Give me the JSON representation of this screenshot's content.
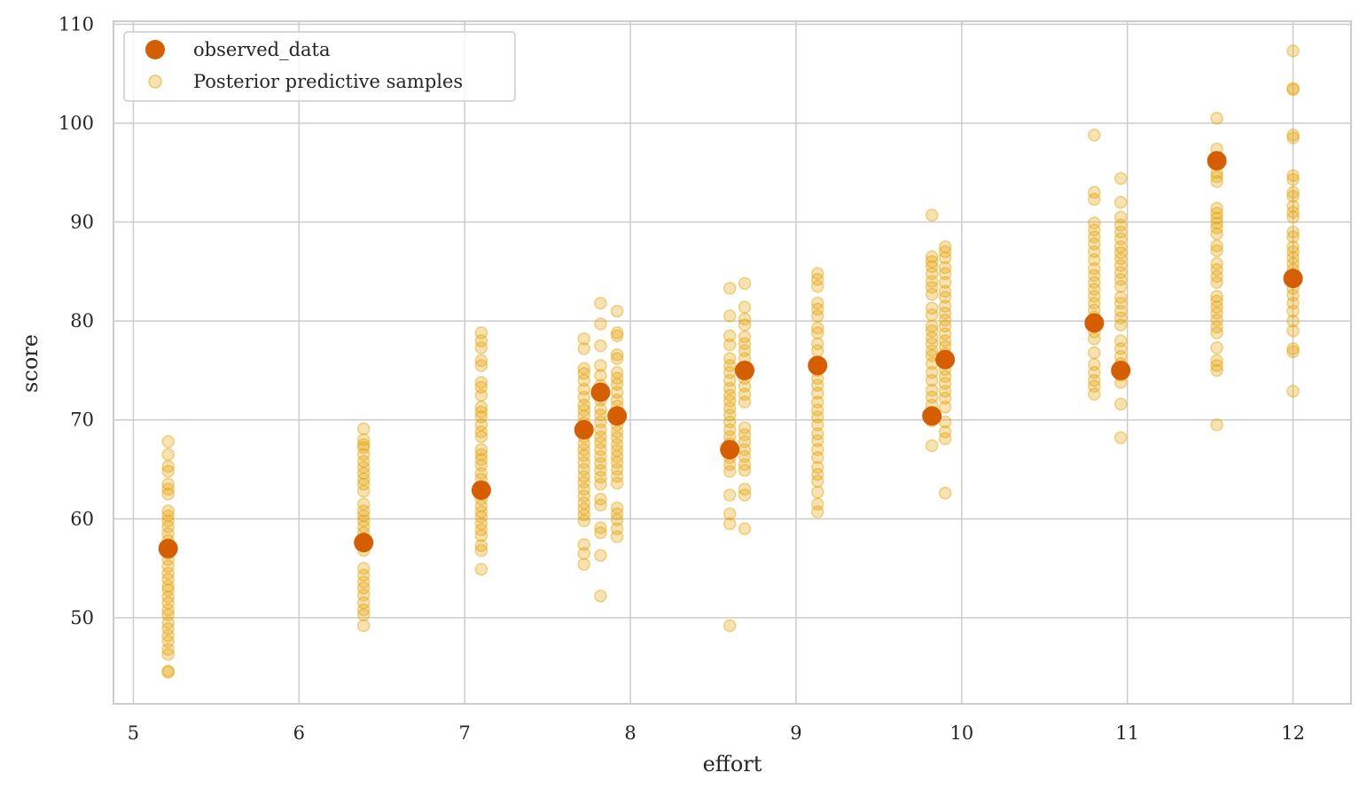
{
  "chart_data": {
    "type": "scatter",
    "title": "",
    "xlabel": "effort",
    "ylabel": "score",
    "xlim": [
      4.88,
      12.35
    ],
    "ylim": [
      41.3,
      110.3
    ],
    "xticks": [
      5,
      6,
      7,
      8,
      9,
      10,
      11,
      12
    ],
    "yticks": [
      50,
      60,
      70,
      80,
      90,
      100,
      110
    ],
    "grid": true,
    "legend_position": "top-left",
    "series": [
      {
        "name": "observed_data",
        "color": "#d55e00",
        "marker": "large-circle",
        "points": [
          [
            5.21,
            57.0
          ],
          [
            6.39,
            57.6
          ],
          [
            7.1,
            62.9
          ],
          [
            7.72,
            69.0
          ],
          [
            7.82,
            72.8
          ],
          [
            7.92,
            70.4
          ],
          [
            8.6,
            67.0
          ],
          [
            8.69,
            75.0
          ],
          [
            9.13,
            75.5
          ],
          [
            9.82,
            70.4
          ],
          [
            9.9,
            76.1
          ],
          [
            10.8,
            79.8
          ],
          [
            10.96,
            75.0
          ],
          [
            11.54,
            96.2
          ],
          [
            12.0,
            84.3
          ]
        ]
      },
      {
        "name": "Posterior predictive samples",
        "color": "#e69f00",
        "marker": "small-circle-translucent",
        "columns": [
          {
            "x": 5.21,
            "y": [
              67.8,
              66.5,
              65.3,
              64.8,
              63.5,
              63.0,
              62.5,
              60.8,
              60.3,
              59.8,
              59.2,
              58.5,
              57.8,
              57.0,
              56.5,
              55.9,
              55.2,
              54.5,
              53.9,
              53.2,
              52.8,
              52.1,
              51.5,
              50.8,
              50.3,
              49.5,
              48.9,
              48.2,
              47.6,
              46.8,
              46.3,
              44.6,
              44.5
            ]
          },
          {
            "x": 6.39,
            "y": [
              69.1,
              68.0,
              67.5,
              67.2,
              66.5,
              65.8,
              65.2,
              64.6,
              64.0,
              63.5,
              62.8,
              61.5,
              60.8,
              60.3,
              59.8,
              59.2,
              58.6,
              58.0,
              57.4,
              56.8,
              55.0,
              54.3,
              53.6,
              53.0,
              52.3,
              51.5,
              50.8,
              50.3,
              49.2
            ]
          },
          {
            "x": 7.1,
            "y": [
              78.8,
              78.0,
              77.3,
              76.0,
              75.5,
              73.8,
              73.3,
              72.5,
              71.3,
              70.8,
              70.3,
              69.5,
              68.8,
              68.3,
              67.0,
              66.5,
              66.0,
              65.4,
              64.6,
              64.0,
              63.2,
              62.0,
              61.3,
              60.7,
              60.2,
              59.5,
              58.9,
              58.3,
              57.3,
              56.8,
              54.9
            ]
          },
          {
            "x": 7.72,
            "y": [
              78.2,
              77.2,
              75.2,
              74.7,
              74.0,
              73.1,
              72.3,
              71.5,
              71.0,
              70.4,
              69.7,
              69.0,
              68.3,
              67.6,
              67.0,
              66.4,
              65.7,
              65.0,
              64.3,
              63.7,
              63.0,
              62.3,
              61.6,
              61.0,
              60.4,
              59.8,
              57.4,
              56.5,
              55.4
            ]
          },
          {
            "x": 7.82,
            "y": [
              81.8,
              79.7,
              77.5,
              75.5,
              74.5,
              73.5,
              72.0,
              71.1,
              70.5,
              69.8,
              69.0,
              68.3,
              67.7,
              67.0,
              66.3,
              65.6,
              64.9,
              64.2,
              63.5,
              62.0,
              61.4,
              59.1,
              58.6,
              56.3,
              52.2
            ]
          },
          {
            "x": 7.92,
            "y": [
              81.0,
              78.8,
              78.5,
              76.6,
              76.2,
              74.8,
              74.2,
              73.6,
              72.8,
              72.0,
              71.4,
              70.7,
              70.1,
              69.5,
              68.8,
              68.2,
              67.5,
              66.9,
              66.3,
              65.7,
              65.0,
              64.3,
              63.6,
              61.1,
              60.5,
              59.9,
              59.0,
              58.2
            ]
          },
          {
            "x": 8.6,
            "y": [
              83.3,
              80.5,
              78.5,
              77.6,
              76.2,
              75.5,
              74.8,
              74.0,
              73.2,
              72.5,
              71.9,
              71.2,
              70.5,
              69.8,
              69.0,
              68.3,
              67.6,
              66.9,
              66.2,
              65.5,
              64.8,
              62.4,
              60.5,
              59.5,
              49.2
            ]
          },
          {
            "x": 8.69,
            "y": [
              83.8,
              81.4,
              80.2,
              79.6,
              78.4,
              77.7,
              77.0,
              76.2,
              75.0,
              74.2,
              73.4,
              72.6,
              71.8,
              69.2,
              68.5,
              67.8,
              67.0,
              66.3,
              65.5,
              64.9,
              63.0,
              62.4,
              59.0
            ]
          },
          {
            "x": 9.13,
            "y": [
              84.8,
              84.2,
              83.5,
              81.8,
              81.2,
              80.5,
              79.3,
              78.8,
              77.7,
              77.0,
              75.8,
              75.0,
              74.2,
              73.5,
              72.7,
              71.8,
              71.0,
              70.3,
              69.5,
              68.6,
              67.9,
              67.0,
              66.2,
              65.2,
              64.5,
              63.8,
              62.7,
              61.5,
              60.7
            ]
          },
          {
            "x": 9.82,
            "y": [
              90.7,
              86.5,
              86.0,
              85.5,
              84.8,
              84.0,
              83.4,
              82.7,
              81.3,
              80.6,
              79.5,
              79.0,
              78.3,
              77.7,
              77.0,
              76.5,
              75.7,
              74.8,
              74.0,
              73.0,
              72.3,
              71.5,
              70.6,
              69.9,
              67.4
            ]
          },
          {
            "x": 9.9,
            "y": [
              87.5,
              87.0,
              86.4,
              85.4,
              84.8,
              83.9,
              83.0,
              82.4,
              81.5,
              80.8,
              80.1,
              79.5,
              78.7,
              78.0,
              77.4,
              76.7,
              75.8,
              75.1,
              74.4,
              73.7,
              72.9,
              72.2,
              71.3,
              69.8,
              68.8,
              68.1,
              62.6
            ]
          },
          {
            "x": 10.8,
            "y": [
              98.8,
              93.0,
              92.3,
              89.9,
              89.2,
              88.5,
              87.8,
              87.0,
              86.2,
              85.3,
              84.6,
              83.9,
              83.2,
              82.5,
              81.8,
              81.1,
              80.4,
              79.6,
              78.9,
              78.2,
              76.8,
              75.6,
              74.8,
              74.0,
              73.4,
              72.6
            ]
          },
          {
            "x": 10.96,
            "y": [
              94.4,
              92.0,
              90.5,
              89.7,
              89.0,
              88.3,
              87.5,
              86.9,
              86.3,
              85.6,
              84.9,
              84.2,
              83.5,
              82.4,
              81.8,
              81.0,
              80.3,
              79.6,
              78.0,
              77.2,
              76.4,
              75.7,
              74.5,
              73.8,
              71.6,
              68.2
            ]
          },
          {
            "x": 11.54,
            "y": [
              100.5,
              97.4,
              96.0,
              95.0,
              94.6,
              94.1,
              91.4,
              90.9,
              90.4,
              89.9,
              89.4,
              88.8,
              87.6,
              87.1,
              85.8,
              85.2,
              84.5,
              83.9,
              82.5,
              82.0,
              81.4,
              80.8,
              80.1,
              79.4,
              78.8,
              77.3,
              76.0,
              75.5,
              75.0,
              69.5
            ]
          },
          {
            "x": 12.0,
            "y": [
              107.3,
              103.5,
              103.4,
              98.8,
              98.5,
              94.7,
              94.3,
              93.0,
              92.6,
              91.6,
              91.0,
              90.5,
              89.0,
              88.5,
              87.5,
              87.0,
              86.4,
              85.8,
              85.2,
              84.6,
              84.0,
              83.3,
              82.6,
              81.8,
              81.0,
              80.0,
              79.0,
              77.2,
              76.9,
              72.9
            ]
          }
        ]
      }
    ],
    "legend": [
      "observed_data",
      "Posterior predictive samples"
    ]
  }
}
